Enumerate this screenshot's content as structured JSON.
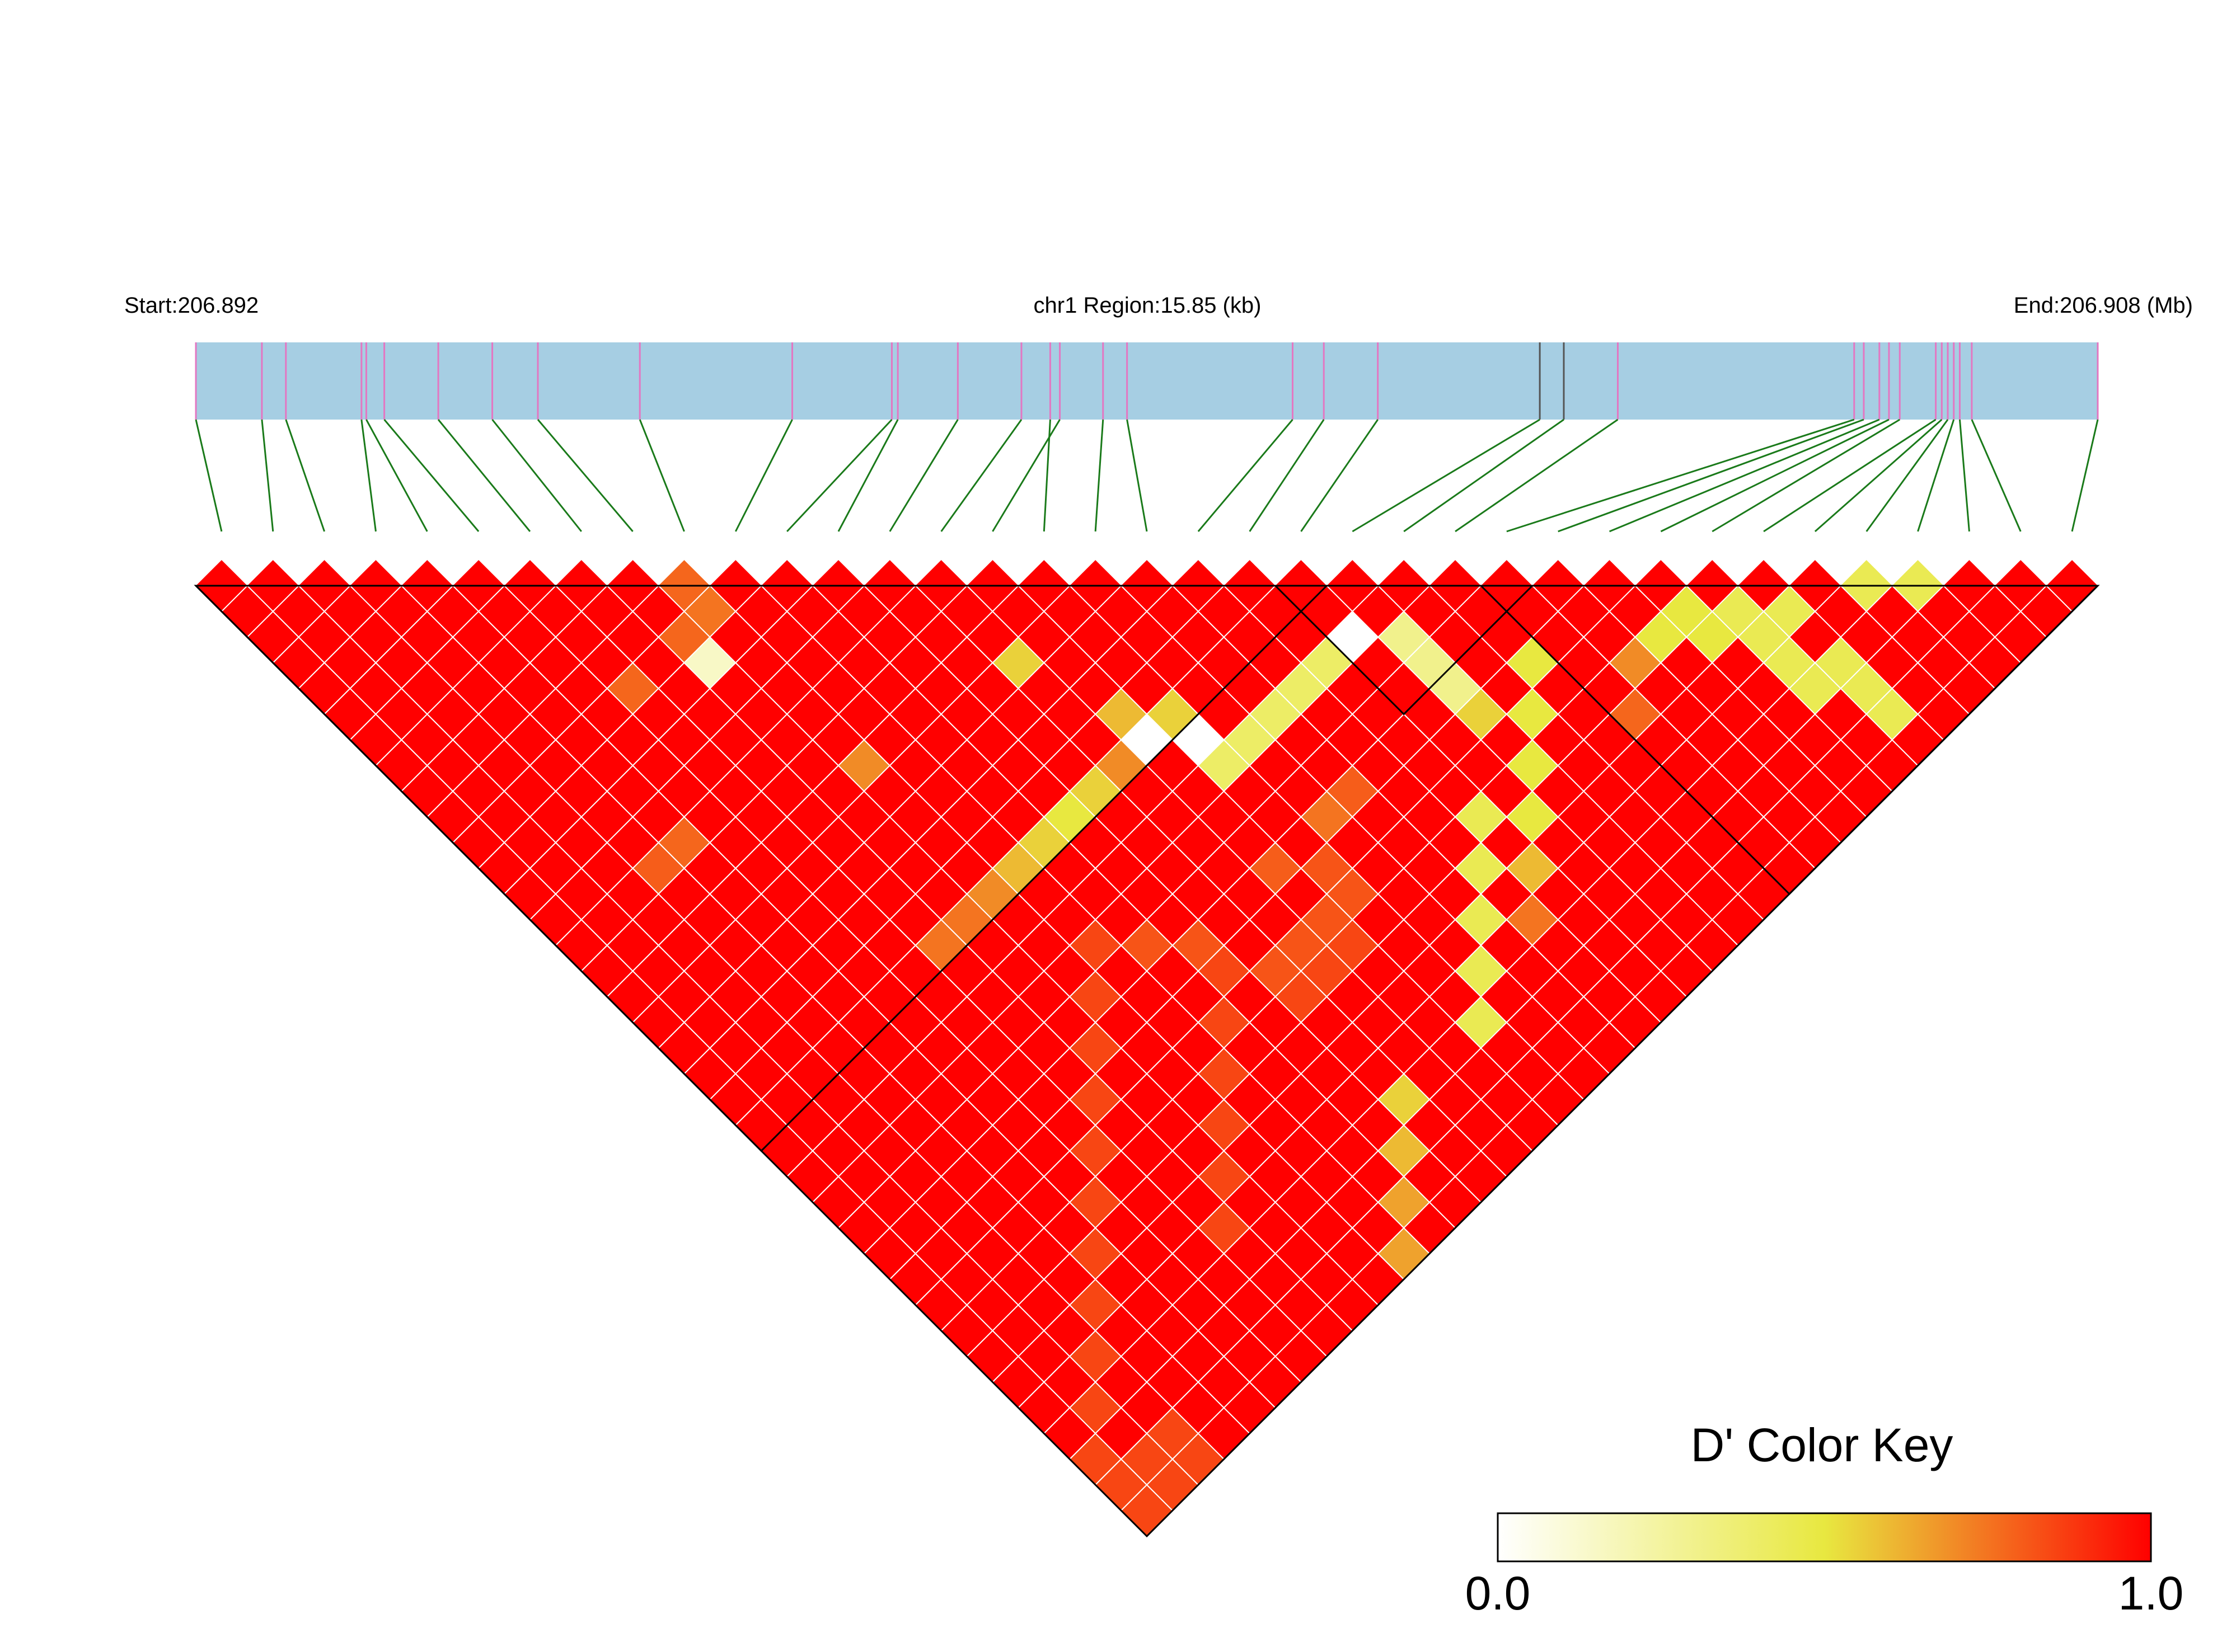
{
  "chart_data": {
    "type": "heatmap",
    "subtype": "linkage-disequilibrium-triangle",
    "header": {
      "start_label": "Start:206.892",
      "region_label": "chr1 Region:15.85 (kb)",
      "end_label": "End:206.908 (Mb)"
    },
    "region": {
      "chromosome": "chr1",
      "start_mb": 206.892,
      "end_mb": 206.908,
      "length_kb": 15.85
    },
    "n_snps": 37,
    "snp_positions_kb": [
      0.0,
      0.55,
      0.75,
      1.38,
      1.42,
      1.57,
      2.02,
      2.47,
      2.85,
      3.7,
      4.97,
      5.8,
      5.85,
      6.35,
      6.88,
      7.2,
      7.12,
      7.56,
      7.76,
      9.14,
      9.4,
      9.85,
      11.2,
      11.4,
      11.85,
      13.82,
      13.9,
      14.03,
      14.11,
      14.2,
      14.5,
      14.55,
      14.6,
      14.65,
      14.7,
      14.8,
      15.85
    ],
    "gray_markers_kb": [
      11.2,
      11.4
    ],
    "color_key": {
      "title": "D' Color Key",
      "min_label": "0.0",
      "max_label": "1.0",
      "min": 0.0,
      "max": 1.0,
      "colors": [
        "#ffffff",
        "#e8e840",
        "#ff0000"
      ]
    },
    "blocks": [
      {
        "first_snp": 1,
        "last_snp": 22
      },
      {
        "first_snp": 22,
        "last_snp": 26
      },
      {
        "first_snp": 26,
        "last_snp": 37
      }
    ],
    "d_prime_default": 1.0,
    "d_prime_pairs": [
      [
        9,
        11,
        0.78
      ],
      [
        10,
        11,
        0.75
      ],
      [
        9,
        12,
        0.15
      ],
      [
        7,
        11,
        0.78
      ],
      [
        10,
        17,
        0.7
      ],
      [
        15,
        18,
        0.55
      ],
      [
        4,
        15,
        0.8
      ],
      [
        5,
        15,
        0.78
      ],
      [
        16,
        21,
        0.6
      ],
      [
        16,
        22,
        0.0
      ],
      [
        17,
        22,
        0.55
      ],
      [
        17,
        23,
        0.0
      ],
      [
        17,
        24,
        0.4
      ],
      [
        18,
        24,
        0.4
      ],
      [
        19,
        24,
        0.4
      ],
      [
        20,
        24,
        0.4
      ],
      [
        21,
        24,
        0.4
      ],
      [
        22,
        24,
        0.0
      ],
      [
        23,
        25,
        0.3
      ],
      [
        23,
        26,
        0.3
      ],
      [
        23,
        27,
        0.3
      ],
      [
        23,
        28,
        0.55
      ],
      [
        8,
        22,
        0.75
      ],
      [
        9,
        22,
        0.75
      ],
      [
        10,
        22,
        0.7
      ],
      [
        11,
        22,
        0.6
      ],
      [
        12,
        22,
        0.55
      ],
      [
        13,
        22,
        0.5
      ],
      [
        14,
        22,
        0.55
      ],
      [
        15,
        22,
        0.7
      ],
      [
        20,
        33,
        0.75
      ],
      [
        21,
        32,
        0.6
      ],
      [
        22,
        31,
        0.5
      ],
      [
        23,
        30,
        0.5
      ],
      [
        24,
        29,
        0.5
      ],
      [
        25,
        28,
        0.5
      ],
      [
        26,
        31,
        0.78
      ],
      [
        27,
        30,
        0.7
      ],
      [
        28,
        30,
        0.5
      ],
      [
        29,
        30,
        0.5
      ],
      [
        29,
        31,
        0.5
      ],
      [
        30,
        31,
        0.45
      ],
      [
        30,
        32,
        0.45
      ],
      [
        30,
        33,
        0.45
      ],
      [
        30,
        34,
        0.45
      ],
      [
        31,
        32,
        0.45
      ],
      [
        31,
        34,
        0.45
      ],
      [
        31,
        35,
        0.45
      ],
      [
        31,
        36,
        0.45
      ],
      [
        17,
        34,
        0.45
      ],
      [
        18,
        33,
        0.45
      ],
      [
        19,
        32,
        0.45
      ],
      [
        20,
        31,
        0.45
      ],
      [
        21,
        30,
        0.45
      ],
      [
        14,
        34,
        0.55
      ],
      [
        13,
        35,
        0.6
      ],
      [
        12,
        36,
        0.65
      ],
      [
        11,
        37,
        0.65
      ],
      [
        18,
        27,
        0.75
      ],
      [
        19,
        27,
        0.8
      ],
      [
        16,
        27,
        0.8
      ],
      [
        12,
        26,
        0.82
      ],
      [
        13,
        27,
        0.82
      ],
      [
        11,
        25,
        0.85
      ],
      [
        10,
        26,
        0.85
      ],
      [
        9,
        27,
        0.85
      ],
      [
        8,
        28,
        0.85
      ],
      [
        7,
        29,
        0.85
      ],
      [
        6,
        30,
        0.85
      ],
      [
        5,
        31,
        0.85
      ],
      [
        4,
        32,
        0.85
      ],
      [
        3,
        33,
        0.85
      ],
      [
        2,
        34,
        0.85
      ],
      [
        1,
        35,
        0.85
      ],
      [
        1,
        36,
        0.85
      ],
      [
        1,
        37,
        0.85
      ],
      [
        2,
        36,
        0.85
      ],
      [
        2,
        37,
        0.85
      ],
      [
        3,
        36,
        0.85
      ],
      [
        3,
        37,
        0.85
      ],
      [
        8,
        33,
        0.85
      ],
      [
        9,
        32,
        0.85
      ],
      [
        10,
        31,
        0.85
      ],
      [
        11,
        30,
        0.85
      ],
      [
        12,
        29,
        0.85
      ],
      [
        13,
        28,
        0.85
      ],
      [
        14,
        30,
        0.85
      ],
      [
        15,
        30,
        0.85
      ],
      [
        16,
        30,
        0.85
      ],
      [
        14,
        29,
        0.82
      ],
      [
        15,
        29,
        0.82
      ],
      [
        16,
        29,
        0.82
      ],
      [
        17,
        29,
        0.82
      ],
      [
        17,
        28,
        0.82
      ]
    ]
  }
}
